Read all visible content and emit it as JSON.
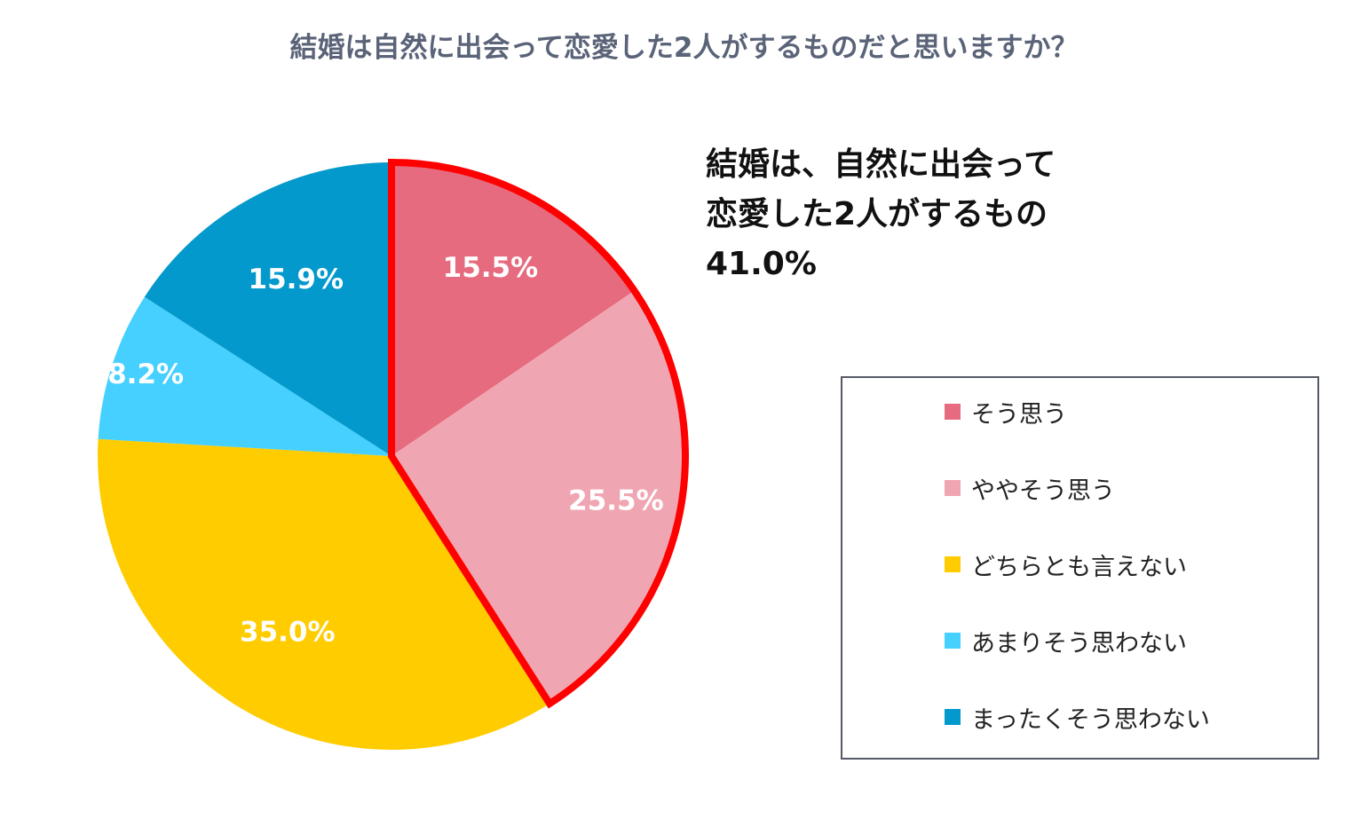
{
  "title": "結婚は自然に出会って恋愛した2人がするものだと思いますか？",
  "callout": {
    "line1": "結婚は、自然に出会って",
    "line2": "恋愛した2人がするもの",
    "line3": "41.0%"
  },
  "chart_data": {
    "type": "pie",
    "title": "結婚は自然に出会って恋愛した2人がするものだと思いますか？",
    "categories": [
      "そう思う",
      "ややそう思う",
      "どちらとも言えない",
      "あまりそう思わない",
      "まったくそう思わない"
    ],
    "values": [
      15.5,
      25.5,
      35.0,
      8.2,
      15.9
    ],
    "labels": [
      "15.5%",
      "25.5%",
      "35.0%",
      "8.2%",
      "15.9%"
    ],
    "colors": [
      "#e66b7e",
      "#f0a6b2",
      "#ffcc00",
      "#45d0ff",
      "#0399cc"
    ],
    "highlight": {
      "indices": [
        0,
        1
      ],
      "color": "#ff0000",
      "label": "41.0%"
    },
    "start": "12 o'clock",
    "direction": "clockwise",
    "legend_position": "right"
  }
}
